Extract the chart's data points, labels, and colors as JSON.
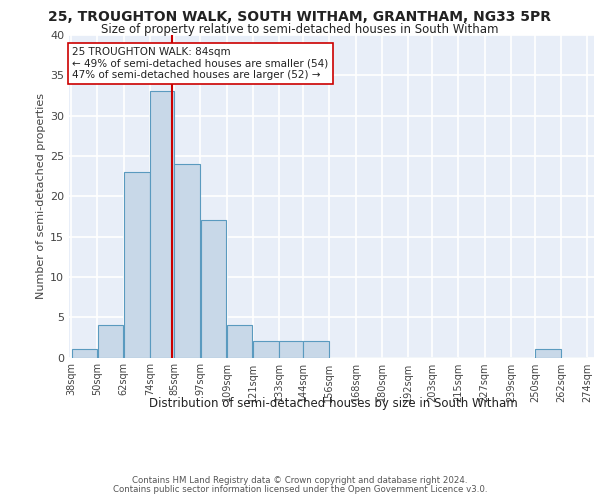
{
  "title1": "25, TROUGHTON WALK, SOUTH WITHAM, GRANTHAM, NG33 5PR",
  "title2": "Size of property relative to semi-detached houses in South Witham",
  "xlabel": "Distribution of semi-detached houses by size in South Witham",
  "ylabel": "Number of semi-detached properties",
  "footer1": "Contains HM Land Registry data © Crown copyright and database right 2024.",
  "footer2": "Contains public sector information licensed under the Open Government Licence v3.0.",
  "annotation_line1": "25 TROUGHTON WALK: 84sqm",
  "annotation_line2": "← 49% of semi-detached houses are smaller (54)",
  "annotation_line3": "47% of semi-detached houses are larger (52) →",
  "bar_left_edges": [
    38,
    50,
    62,
    74,
    85,
    97,
    109,
    121,
    133,
    144,
    156,
    168,
    180,
    192,
    203,
    215,
    227,
    239,
    250,
    262
  ],
  "bar_widths": [
    12,
    12,
    12,
    11,
    12,
    12,
    12,
    12,
    11,
    12,
    12,
    12,
    12,
    11,
    12,
    12,
    12,
    11,
    12,
    12
  ],
  "bar_heights": [
    1,
    4,
    23,
    33,
    24,
    17,
    4,
    2,
    2,
    2,
    0,
    0,
    0,
    0,
    0,
    0,
    0,
    0,
    1,
    0
  ],
  "bar_color": "#c8d8e8",
  "bar_edge_color": "#5a9abf",
  "property_value": 84,
  "vline_color": "#cc0000",
  "background_color": "#e8eef8",
  "grid_color": "#ffffff",
  "tick_labels": [
    "38sqm",
    "50sqm",
    "62sqm",
    "74sqm",
    "85sqm",
    "97sqm",
    "109sqm",
    "121sqm",
    "133sqm",
    "144sqm",
    "156sqm",
    "168sqm",
    "180sqm",
    "192sqm",
    "203sqm",
    "215sqm",
    "227sqm",
    "239sqm",
    "250sqm",
    "262sqm",
    "274sqm"
  ],
  "ylim": [
    0,
    40
  ],
  "yticks": [
    0,
    5,
    10,
    15,
    20,
    25,
    30,
    35,
    40
  ]
}
